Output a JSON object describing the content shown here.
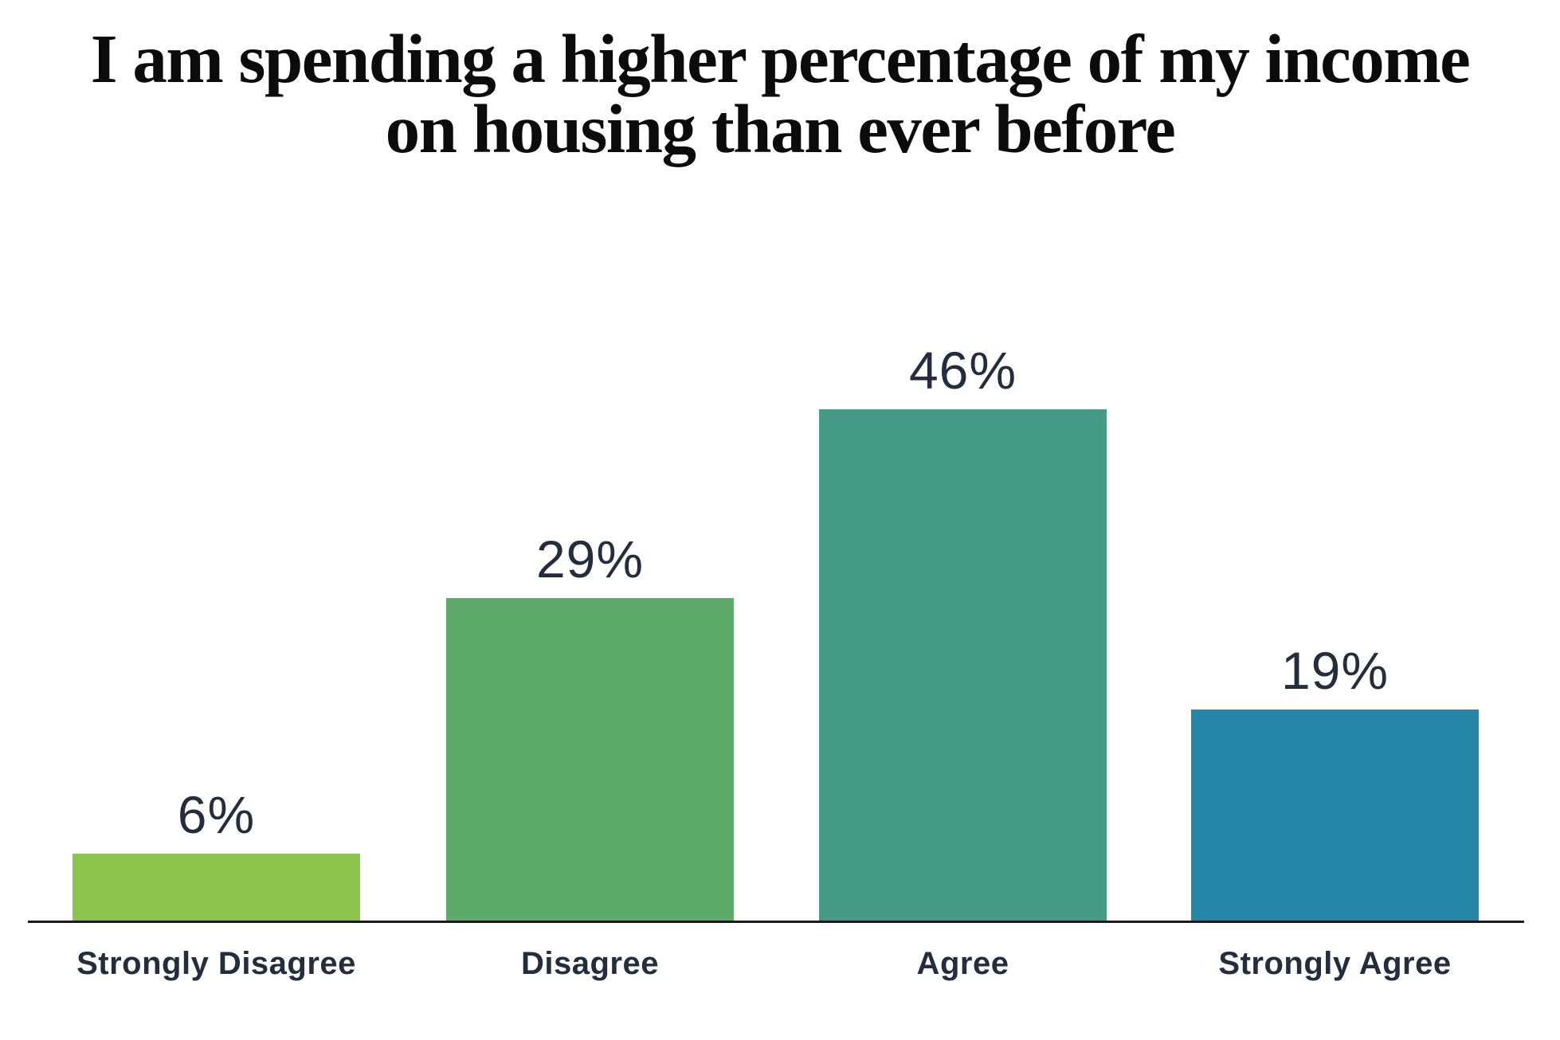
{
  "chart_data": {
    "type": "bar",
    "title": "I am spending a higher percentage of my income on housing than ever before",
    "title_lines": [
      "I am spending a higher percentage of my income",
      "on housing than ever before"
    ],
    "categories": [
      "Strongly Disagree",
      "Disagree",
      "Agree",
      "Strongly Agree"
    ],
    "values": [
      6,
      29,
      46,
      19
    ],
    "value_labels": [
      "6%",
      "29%",
      "46%",
      "19%"
    ],
    "bar_colors": [
      "#8bc34c",
      "#5daa6b",
      "#459b85",
      "#2686a7"
    ],
    "title_color": "#0b0b0b",
    "label_color": "#222e3e",
    "axis_color": "#1b1b1b",
    "background": "#ffffff",
    "xlabel": "",
    "ylabel": "",
    "ylim": [
      0,
      50
    ],
    "grid": false,
    "legend": false
  }
}
